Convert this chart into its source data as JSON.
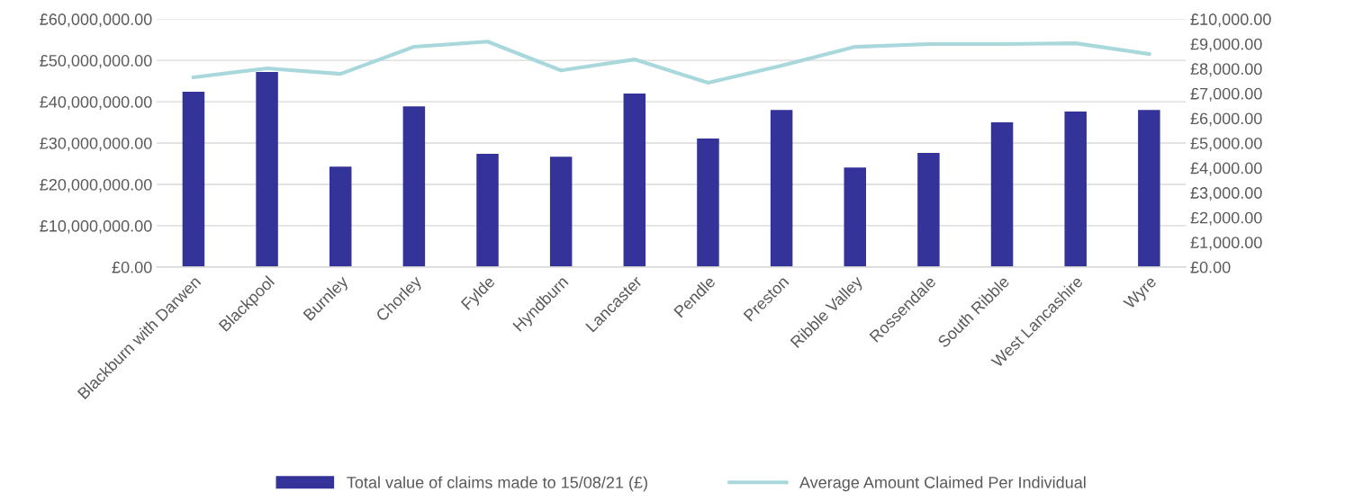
{
  "chart_data": {
    "type": "bar",
    "categories": [
      "Blackburn with Darwen",
      "Blackpool",
      "Burnley",
      "Chorley",
      "Fylde",
      "Hyndburn",
      "Lancaster",
      "Pendle",
      "Preston",
      "Ribble Valley",
      "Rossendale",
      "South Ribble",
      "West Lancashire",
      "Wyre"
    ],
    "series": [
      {
        "name": "Total value of claims made to 15/08/21 (£)",
        "color": "#333399",
        "values": [
          42400000,
          47200000,
          24300000,
          38900000,
          27400000,
          26700000,
          42000000,
          31100000,
          38000000,
          24100000,
          27600000,
          35000000,
          37600000,
          38000000
        ]
      },
      {
        "name": "Average Amount Claimed Per Individual",
        "type": "line",
        "axis": "y2",
        "color": "#a9d8dc",
        "values": [
          7650,
          8010,
          7790,
          8880,
          9090,
          7930,
          8370,
          7430,
          8120,
          8880,
          8990,
          8990,
          9020,
          8590
        ]
      }
    ],
    "ylim": [
      0,
      60000000
    ],
    "yticks": [
      {
        "value": 0,
        "label": "£0.00"
      },
      {
        "value": 10000000,
        "label": "£10,000,000.00"
      },
      {
        "value": 20000000,
        "label": "£20,000,000.00"
      },
      {
        "value": 30000000,
        "label": "£30,000,000.00"
      },
      {
        "value": 40000000,
        "label": "£40,000,000.00"
      },
      {
        "value": 50000000,
        "label": "£50,000,000.00"
      },
      {
        "value": 60000000,
        "label": "£60,000,000.00"
      }
    ],
    "y2lim": [
      0,
      10000
    ],
    "y2ticks": [
      {
        "value": 0,
        "label": "£0.00"
      },
      {
        "value": 1000,
        "label": "£1,000.00"
      },
      {
        "value": 2000,
        "label": "£2,000.00"
      },
      {
        "value": 3000,
        "label": "£3,000.00"
      },
      {
        "value": 4000,
        "label": "£4,000.00"
      },
      {
        "value": 5000,
        "label": "£5,000.00"
      },
      {
        "value": 6000,
        "label": "£6,000.00"
      },
      {
        "value": 7000,
        "label": "£7,000.00"
      },
      {
        "value": 8000,
        "label": "£8,000.00"
      },
      {
        "value": 9000,
        "label": "£9,000.00"
      },
      {
        "value": 10000,
        "label": "£10,000.00"
      }
    ],
    "grid": "y",
    "legend": "bottom",
    "marker": "none",
    "line_style": "solid"
  }
}
